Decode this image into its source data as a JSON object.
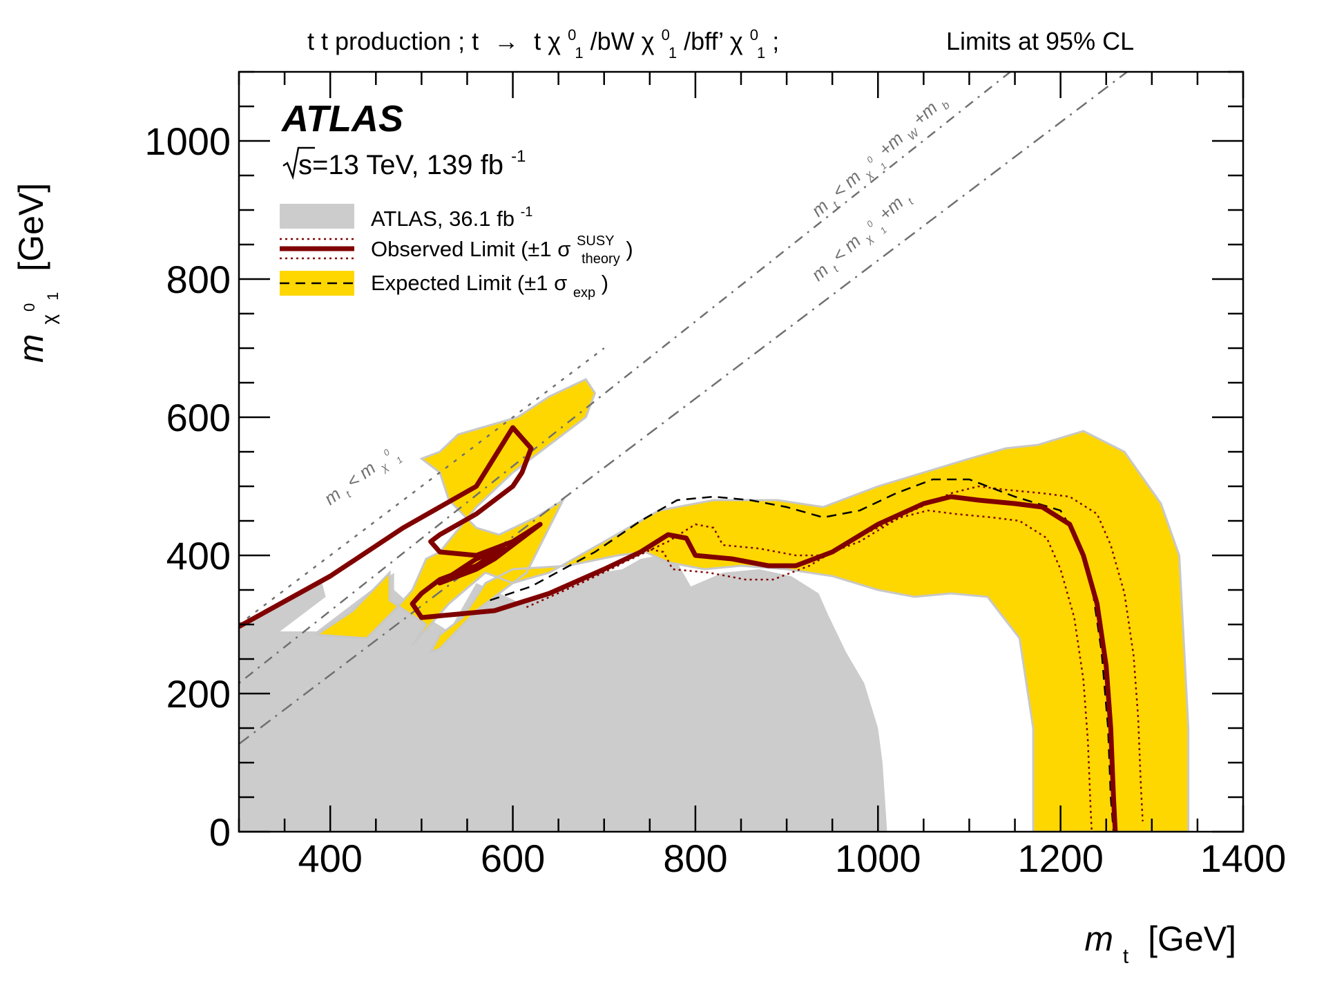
{
  "header": {
    "process_prefix": "t t production ; t",
    "process_suffix": "t χ",
    "decay_1": "/bW",
    "decay_2": "/bff’",
    "decay_end": ";",
    "sup_zero": "0",
    "sub_one": "1",
    "cl_text": "Limits at 95% CL"
  },
  "atlas": {
    "label": "ATLAS",
    "energy_text": "s=13 TeV, 139 fb",
    "lumi_sup": "-1"
  },
  "legend": {
    "items": [
      {
        "label": "ATLAS, 36.1 fb",
        "sup": "-1",
        "sub": "",
        "tail": ""
      },
      {
        "label": "Observed Limit (±1 σ",
        "sup": "SUSY",
        "sub": "theory",
        "tail": ")"
      },
      {
        "label": "Expected Limit (±1 σ",
        "sup": "",
        "sub": "exp",
        "tail": ")"
      }
    ]
  },
  "axes": {
    "x": {
      "label_main": "m",
      "label_sub": "t",
      "label_unit": "[GeV]",
      "ticks": [
        "400",
        "600",
        "800",
        "1000",
        "1200",
        "1400"
      ]
    },
    "y": {
      "label_main": "m",
      "label_sub": "χ",
      "label_sup": "0",
      "label_sub2": "1",
      "label_unit": "[GeV]",
      "ticks": [
        "0",
        "200",
        "400",
        "600",
        "800",
        "1000"
      ]
    }
  },
  "lines": {
    "line1": {
      "prefix": "m",
      "sub": "t",
      "text": "< m",
      "sub2": "χ",
      "sup2": "0",
      "sub3": "1"
    },
    "line2": {
      "prefix": "m",
      "sub": "t",
      "text": "< m",
      "sub2": "χ",
      "sup2": "0",
      "sub3": "1",
      "mid": "+m",
      "sub4": "t"
    },
    "line3": {
      "prefix": "m",
      "sub": "t",
      "text": "< m",
      "sub2": "χ",
      "sup2": "0",
      "sub3": "1",
      "mid": "+m",
      "sub4": "W",
      "mid2": "+m",
      "sub5": "b"
    }
  },
  "colors": {
    "previous": "#cccccc",
    "band": "#ffd700",
    "observed": "#800000",
    "expected": "#000000",
    "kinematic": "#707070"
  },
  "chart_data": {
    "type": "area",
    "xlim": [
      300,
      1400
    ],
    "ylim": [
      0,
      1100
    ],
    "kinematic_lines": [
      {
        "name": "m_stop = m_neutralino",
        "points": [
          [
            300,
            300
          ],
          [
            700,
            700
          ]
        ]
      },
      {
        "name": "m_stop = m_neutralino + m_W + m_b",
        "points": [
          [
            300,
            215
          ],
          [
            1145,
            1100
          ]
        ]
      },
      {
        "name": "m_stop = m_neutralino + m_t",
        "points": [
          [
            300,
            127
          ],
          [
            1273,
            1100
          ]
        ]
      }
    ],
    "previous_limit": [
      [
        300,
        0
      ],
      [
        300,
        300
      ],
      [
        390,
        365
      ],
      [
        395,
        340
      ],
      [
        345,
        290
      ],
      [
        385,
        290
      ],
      [
        425,
        330
      ],
      [
        470,
        375
      ],
      [
        470,
        350
      ],
      [
        500,
        315
      ],
      [
        530,
        290
      ],
      [
        560,
        360
      ],
      [
        610,
        330
      ],
      [
        660,
        360
      ],
      [
        695,
        375
      ],
      [
        720,
        380
      ],
      [
        740,
        395
      ],
      [
        760,
        400
      ],
      [
        780,
        390
      ],
      [
        795,
        355
      ],
      [
        830,
        375
      ],
      [
        870,
        380
      ],
      [
        905,
        370
      ],
      [
        935,
        345
      ],
      [
        945,
        315
      ],
      [
        965,
        260
      ],
      [
        985,
        215
      ],
      [
        1000,
        150
      ],
      [
        1005,
        100
      ],
      [
        1010,
        0
      ]
    ],
    "expected_band": [
      [
        385,
        285
      ],
      [
        425,
        320
      ],
      [
        465,
        375
      ],
      [
        465,
        335
      ],
      [
        505,
        300
      ],
      [
        490,
        270
      ],
      [
        530,
        330
      ],
      [
        570,
        375
      ],
      [
        600,
        360
      ],
      [
        640,
        375
      ],
      [
        700,
        420
      ],
      [
        760,
        465
      ],
      [
        820,
        480
      ],
      [
        890,
        480
      ],
      [
        940,
        470
      ],
      [
        1000,
        500
      ],
      [
        1050,
        520
      ],
      [
        1100,
        540
      ],
      [
        1140,
        555
      ],
      [
        1175,
        560
      ],
      [
        1225,
        580
      ],
      [
        1270,
        550
      ],
      [
        1310,
        475
      ],
      [
        1330,
        400
      ],
      [
        1340,
        150
      ],
      [
        1340,
        0
      ],
      [
        1170,
        0
      ],
      [
        1170,
        150
      ],
      [
        1155,
        280
      ],
      [
        1120,
        340
      ],
      [
        1080,
        345
      ],
      [
        1040,
        340
      ],
      [
        1000,
        350
      ],
      [
        950,
        370
      ],
      [
        900,
        380
      ],
      [
        850,
        385
      ],
      [
        810,
        380
      ],
      [
        770,
        390
      ],
      [
        745,
        405
      ],
      [
        715,
        400
      ],
      [
        660,
        385
      ],
      [
        600,
        380
      ],
      [
        570,
        360
      ],
      [
        545,
        310
      ],
      [
        520,
        285
      ],
      [
        510,
        260
      ],
      [
        520,
        265
      ],
      [
        560,
        320
      ],
      [
        600,
        360
      ],
      [
        615,
        375
      ],
      [
        655,
        480
      ],
      [
        625,
        455
      ],
      [
        585,
        430
      ],
      [
        560,
        440
      ],
      [
        530,
        480
      ],
      [
        520,
        520
      ],
      [
        500,
        540
      ],
      [
        520,
        550
      ],
      [
        540,
        575
      ],
      [
        605,
        600
      ],
      [
        640,
        630
      ],
      [
        680,
        655
      ],
      [
        690,
        635
      ],
      [
        680,
        600
      ],
      [
        640,
        560
      ],
      [
        600,
        520
      ],
      [
        560,
        470
      ],
      [
        520,
        405
      ],
      [
        505,
        395
      ],
      [
        490,
        350
      ],
      [
        470,
        320
      ],
      [
        440,
        280
      ]
    ],
    "series": [
      {
        "name": "Observed Limit",
        "values": [
          [
            300,
            297
          ],
          [
            400,
            370
          ],
          [
            480,
            440
          ],
          [
            560,
            500
          ],
          [
            600,
            585
          ],
          [
            620,
            555
          ],
          [
            610,
            520
          ],
          [
            600,
            500
          ],
          [
            560,
            460
          ],
          [
            520,
            430
          ],
          [
            510,
            420
          ],
          [
            520,
            405
          ],
          [
            560,
            400
          ],
          [
            600,
            420
          ],
          [
            630,
            445
          ],
          [
            600,
            415
          ],
          [
            580,
            395
          ],
          [
            560,
            380
          ],
          [
            520,
            360
          ],
          [
            560,
            395
          ],
          [
            590,
            410
          ],
          [
            560,
            385
          ],
          [
            520,
            365
          ],
          [
            500,
            345
          ],
          [
            490,
            330
          ],
          [
            500,
            310
          ],
          [
            540,
            315
          ],
          [
            580,
            320
          ],
          [
            640,
            345
          ],
          [
            700,
            380
          ],
          [
            740,
            405
          ],
          [
            770,
            430
          ],
          [
            790,
            425
          ],
          [
            800,
            400
          ],
          [
            840,
            395
          ],
          [
            880,
            385
          ],
          [
            910,
            385
          ],
          [
            950,
            405
          ],
          [
            1000,
            445
          ],
          [
            1050,
            475
          ],
          [
            1080,
            485
          ],
          [
            1110,
            480
          ],
          [
            1150,
            475
          ],
          [
            1180,
            470
          ],
          [
            1210,
            445
          ],
          [
            1225,
            400
          ],
          [
            1240,
            330
          ],
          [
            1250,
            240
          ],
          [
            1255,
            150
          ],
          [
            1258,
            50
          ],
          [
            1260,
            0
          ]
        ]
      },
      {
        "name": "Expected Limit",
        "values": [
          [
            575,
            335
          ],
          [
            620,
            355
          ],
          [
            690,
            405
          ],
          [
            740,
            450
          ],
          [
            780,
            480
          ],
          [
            820,
            485
          ],
          [
            860,
            480
          ],
          [
            900,
            470
          ],
          [
            940,
            455
          ],
          [
            980,
            465
          ],
          [
            1020,
            490
          ],
          [
            1060,
            510
          ],
          [
            1100,
            510
          ],
          [
            1150,
            485
          ],
          [
            1200,
            465
          ],
          [
            1220,
            420
          ],
          [
            1235,
            350
          ],
          [
            1245,
            260
          ],
          [
            1252,
            150
          ],
          [
            1255,
            50
          ],
          [
            1258,
            0
          ]
        ]
      }
    ]
  }
}
